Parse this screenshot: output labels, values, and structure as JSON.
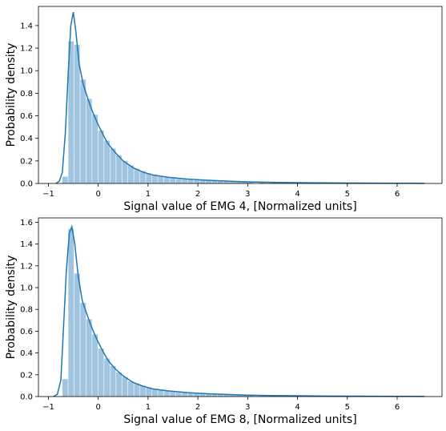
{
  "colors": {
    "bar": "#a1c4e0",
    "line": "#1f77b4",
    "axis": "#000000"
  },
  "chart_data": [
    {
      "type": "bar",
      "xlabel": "Signal value of EMG 4, [Normalized units]",
      "ylabel": "Probability density",
      "xlim": [
        -1.2,
        6.9
      ],
      "ylim": [
        0,
        1.57
      ],
      "xticks": [
        -1,
        0,
        1,
        2,
        3,
        4,
        5,
        6
      ],
      "yticks": [
        0.0,
        0.2,
        0.4,
        0.6,
        0.8,
        1.0,
        1.2,
        1.4
      ],
      "bin_width": 0.12,
      "bins": [
        {
          "x": -0.72,
          "y": 0.06
        },
        {
          "x": -0.6,
          "y": 1.26
        },
        {
          "x": -0.48,
          "y": 1.23
        },
        {
          "x": -0.36,
          "y": 0.92
        },
        {
          "x": -0.24,
          "y": 0.75
        },
        {
          "x": -0.12,
          "y": 0.61
        },
        {
          "x": 0.0,
          "y": 0.47
        },
        {
          "x": 0.12,
          "y": 0.38
        },
        {
          "x": 0.24,
          "y": 0.31
        },
        {
          "x": 0.36,
          "y": 0.25
        },
        {
          "x": 0.48,
          "y": 0.2
        },
        {
          "x": 0.6,
          "y": 0.16
        },
        {
          "x": 0.72,
          "y": 0.13
        },
        {
          "x": 0.84,
          "y": 0.11
        },
        {
          "x": 0.96,
          "y": 0.09
        },
        {
          "x": 1.08,
          "y": 0.08
        },
        {
          "x": 1.2,
          "y": 0.065
        },
        {
          "x": 1.32,
          "y": 0.055
        },
        {
          "x": 1.44,
          "y": 0.047
        },
        {
          "x": 1.56,
          "y": 0.04
        },
        {
          "x": 1.68,
          "y": 0.035
        },
        {
          "x": 1.8,
          "y": 0.031
        },
        {
          "x": 1.92,
          "y": 0.028
        },
        {
          "x": 2.04,
          "y": 0.026
        },
        {
          "x": 2.16,
          "y": 0.024
        },
        {
          "x": 2.28,
          "y": 0.022
        },
        {
          "x": 2.4,
          "y": 0.02
        },
        {
          "x": 2.52,
          "y": 0.019
        },
        {
          "x": 2.64,
          "y": 0.017
        },
        {
          "x": 2.76,
          "y": 0.016
        },
        {
          "x": 2.88,
          "y": 0.015
        },
        {
          "x": 3.0,
          "y": 0.013
        },
        {
          "x": 3.24,
          "y": 0.011
        },
        {
          "x": 3.48,
          "y": 0.009
        },
        {
          "x": 3.72,
          "y": 0.008
        },
        {
          "x": 3.96,
          "y": 0.006
        },
        {
          "x": 4.2,
          "y": 0.005
        },
        {
          "x": 4.44,
          "y": 0.005
        },
        {
          "x": 4.68,
          "y": 0.004
        },
        {
          "x": 4.92,
          "y": 0.004
        },
        {
          "x": 5.16,
          "y": 0.003
        },
        {
          "x": 5.4,
          "y": 0.003
        },
        {
          "x": 5.64,
          "y": 0.003
        },
        {
          "x": 5.88,
          "y": 0.002
        },
        {
          "x": 6.12,
          "y": 0.002
        },
        {
          "x": 6.36,
          "y": 0.002
        }
      ],
      "kde": [
        [
          -0.85,
          0.0
        ],
        [
          -0.78,
          0.02
        ],
        [
          -0.72,
          0.1
        ],
        [
          -0.66,
          0.45
        ],
        [
          -0.6,
          1.0
        ],
        [
          -0.55,
          1.4
        ],
        [
          -0.5,
          1.52
        ],
        [
          -0.45,
          1.35
        ],
        [
          -0.38,
          1.05
        ],
        [
          -0.3,
          0.88
        ],
        [
          -0.2,
          0.74
        ],
        [
          -0.1,
          0.62
        ],
        [
          0.0,
          0.52
        ],
        [
          0.1,
          0.43
        ],
        [
          0.2,
          0.35
        ],
        [
          0.35,
          0.27
        ],
        [
          0.5,
          0.2
        ],
        [
          0.7,
          0.14
        ],
        [
          0.9,
          0.1
        ],
        [
          1.1,
          0.075
        ],
        [
          1.4,
          0.055
        ],
        [
          1.8,
          0.038
        ],
        [
          2.2,
          0.028
        ],
        [
          2.6,
          0.02
        ],
        [
          3.0,
          0.014
        ],
        [
          3.5,
          0.01
        ],
        [
          4.0,
          0.007
        ],
        [
          4.5,
          0.005
        ],
        [
          5.0,
          0.004
        ],
        [
          5.5,
          0.003
        ],
        [
          6.0,
          0.002
        ],
        [
          6.55,
          0.001
        ]
      ]
    },
    {
      "type": "bar",
      "xlabel": "Signal value of EMG 8, [Normalized units]",
      "ylabel": "Probability density",
      "xlim": [
        -1.2,
        6.9
      ],
      "ylim": [
        0,
        1.64
      ],
      "xticks": [
        -1,
        0,
        1,
        2,
        3,
        4,
        5,
        6
      ],
      "yticks": [
        0.0,
        0.2,
        0.4,
        0.6,
        0.8,
        1.0,
        1.2,
        1.4,
        1.6
      ],
      "bin_width": 0.12,
      "bins": [
        {
          "x": -0.72,
          "y": 0.16
        },
        {
          "x": -0.6,
          "y": 1.54
        },
        {
          "x": -0.48,
          "y": 1.13
        },
        {
          "x": -0.36,
          "y": 0.86
        },
        {
          "x": -0.24,
          "y": 0.71
        },
        {
          "x": -0.12,
          "y": 0.57
        },
        {
          "x": 0.0,
          "y": 0.44
        },
        {
          "x": 0.12,
          "y": 0.35
        },
        {
          "x": 0.24,
          "y": 0.28
        },
        {
          "x": 0.36,
          "y": 0.22
        },
        {
          "x": 0.48,
          "y": 0.18
        },
        {
          "x": 0.6,
          "y": 0.14
        },
        {
          "x": 0.72,
          "y": 0.12
        },
        {
          "x": 0.84,
          "y": 0.1
        },
        {
          "x": 0.96,
          "y": 0.085
        },
        {
          "x": 1.08,
          "y": 0.07
        },
        {
          "x": 1.2,
          "y": 0.06
        },
        {
          "x": 1.32,
          "y": 0.052
        },
        {
          "x": 1.44,
          "y": 0.045
        },
        {
          "x": 1.56,
          "y": 0.038
        },
        {
          "x": 1.68,
          "y": 0.034
        },
        {
          "x": 1.8,
          "y": 0.03
        },
        {
          "x": 1.92,
          "y": 0.027
        },
        {
          "x": 2.04,
          "y": 0.025
        },
        {
          "x": 2.16,
          "y": 0.023
        },
        {
          "x": 2.28,
          "y": 0.021
        },
        {
          "x": 2.4,
          "y": 0.019
        },
        {
          "x": 2.52,
          "y": 0.018
        },
        {
          "x": 2.64,
          "y": 0.016
        },
        {
          "x": 2.76,
          "y": 0.015
        },
        {
          "x": 2.88,
          "y": 0.014
        },
        {
          "x": 3.0,
          "y": 0.012
        },
        {
          "x": 3.24,
          "y": 0.01
        },
        {
          "x": 3.48,
          "y": 0.009
        },
        {
          "x": 3.72,
          "y": 0.007
        },
        {
          "x": 3.96,
          "y": 0.006
        },
        {
          "x": 4.2,
          "y": 0.005
        },
        {
          "x": 4.44,
          "y": 0.005
        },
        {
          "x": 4.68,
          "y": 0.004
        },
        {
          "x": 4.92,
          "y": 0.004
        },
        {
          "x": 5.16,
          "y": 0.003
        },
        {
          "x": 5.4,
          "y": 0.003
        },
        {
          "x": 5.64,
          "y": 0.003
        },
        {
          "x": 5.88,
          "y": 0.002
        },
        {
          "x": 6.12,
          "y": 0.002
        },
        {
          "x": 6.36,
          "y": 0.002
        }
      ],
      "kde": [
        [
          -0.9,
          0.0
        ],
        [
          -0.82,
          0.02
        ],
        [
          -0.75,
          0.15
        ],
        [
          -0.7,
          0.6
        ],
        [
          -0.64,
          1.15
        ],
        [
          -0.58,
          1.5
        ],
        [
          -0.53,
          1.56
        ],
        [
          -0.47,
          1.4
        ],
        [
          -0.4,
          1.1
        ],
        [
          -0.32,
          0.88
        ],
        [
          -0.2,
          0.72
        ],
        [
          -0.1,
          0.6
        ],
        [
          0.0,
          0.5
        ],
        [
          0.1,
          0.41
        ],
        [
          0.2,
          0.33
        ],
        [
          0.35,
          0.25
        ],
        [
          0.5,
          0.19
        ],
        [
          0.7,
          0.13
        ],
        [
          0.9,
          0.095
        ],
        [
          1.1,
          0.07
        ],
        [
          1.4,
          0.052
        ],
        [
          1.8,
          0.036
        ],
        [
          2.2,
          0.026
        ],
        [
          2.6,
          0.019
        ],
        [
          3.0,
          0.013
        ],
        [
          3.5,
          0.009
        ],
        [
          4.0,
          0.007
        ],
        [
          4.5,
          0.005
        ],
        [
          5.0,
          0.004
        ],
        [
          5.5,
          0.003
        ],
        [
          6.0,
          0.002
        ],
        [
          6.55,
          0.001
        ]
      ]
    }
  ]
}
